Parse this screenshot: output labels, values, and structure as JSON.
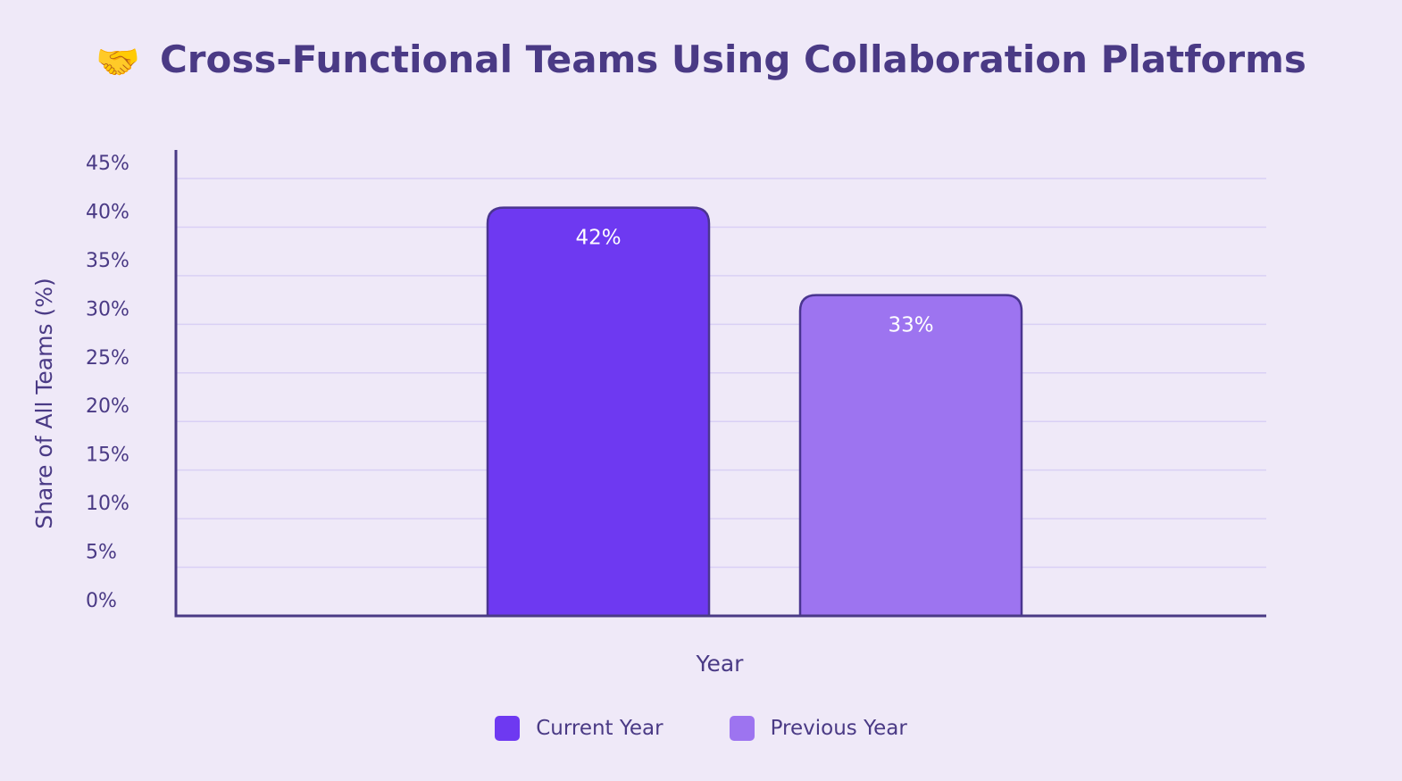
{
  "title": {
    "icon": "handshake-icon",
    "glyph": "🤝",
    "text": "Cross-Functional Teams Using Collaboration Platforms"
  },
  "colors": {
    "current": "#6e39f1",
    "previous": "#9d74f0",
    "axis": "#4a3a85",
    "grid": "#d9d0f5",
    "background": "#efe9f8",
    "bar_label": "#ffffff"
  },
  "legend": [
    {
      "label": "Current Year",
      "color": "#6e39f1"
    },
    {
      "label": "Previous Year",
      "color": "#9d74f0"
    }
  ],
  "chart_data": {
    "type": "bar",
    "title": "Cross-Functional Teams Using Collaboration Platforms",
    "xlabel": "Year",
    "ylabel": "Share of All Teams (%)",
    "ylim": [
      0,
      45
    ],
    "yticks": [
      "0%",
      "5%",
      "10%",
      "15%",
      "20%",
      "25%",
      "30%",
      "35%",
      "40%",
      "45%"
    ],
    "grid": true,
    "legend_position": "bottom",
    "categories": [
      "Current Year",
      "Previous Year"
    ],
    "values": [
      42,
      33
    ],
    "data_labels": [
      "42%",
      "33%"
    ]
  }
}
